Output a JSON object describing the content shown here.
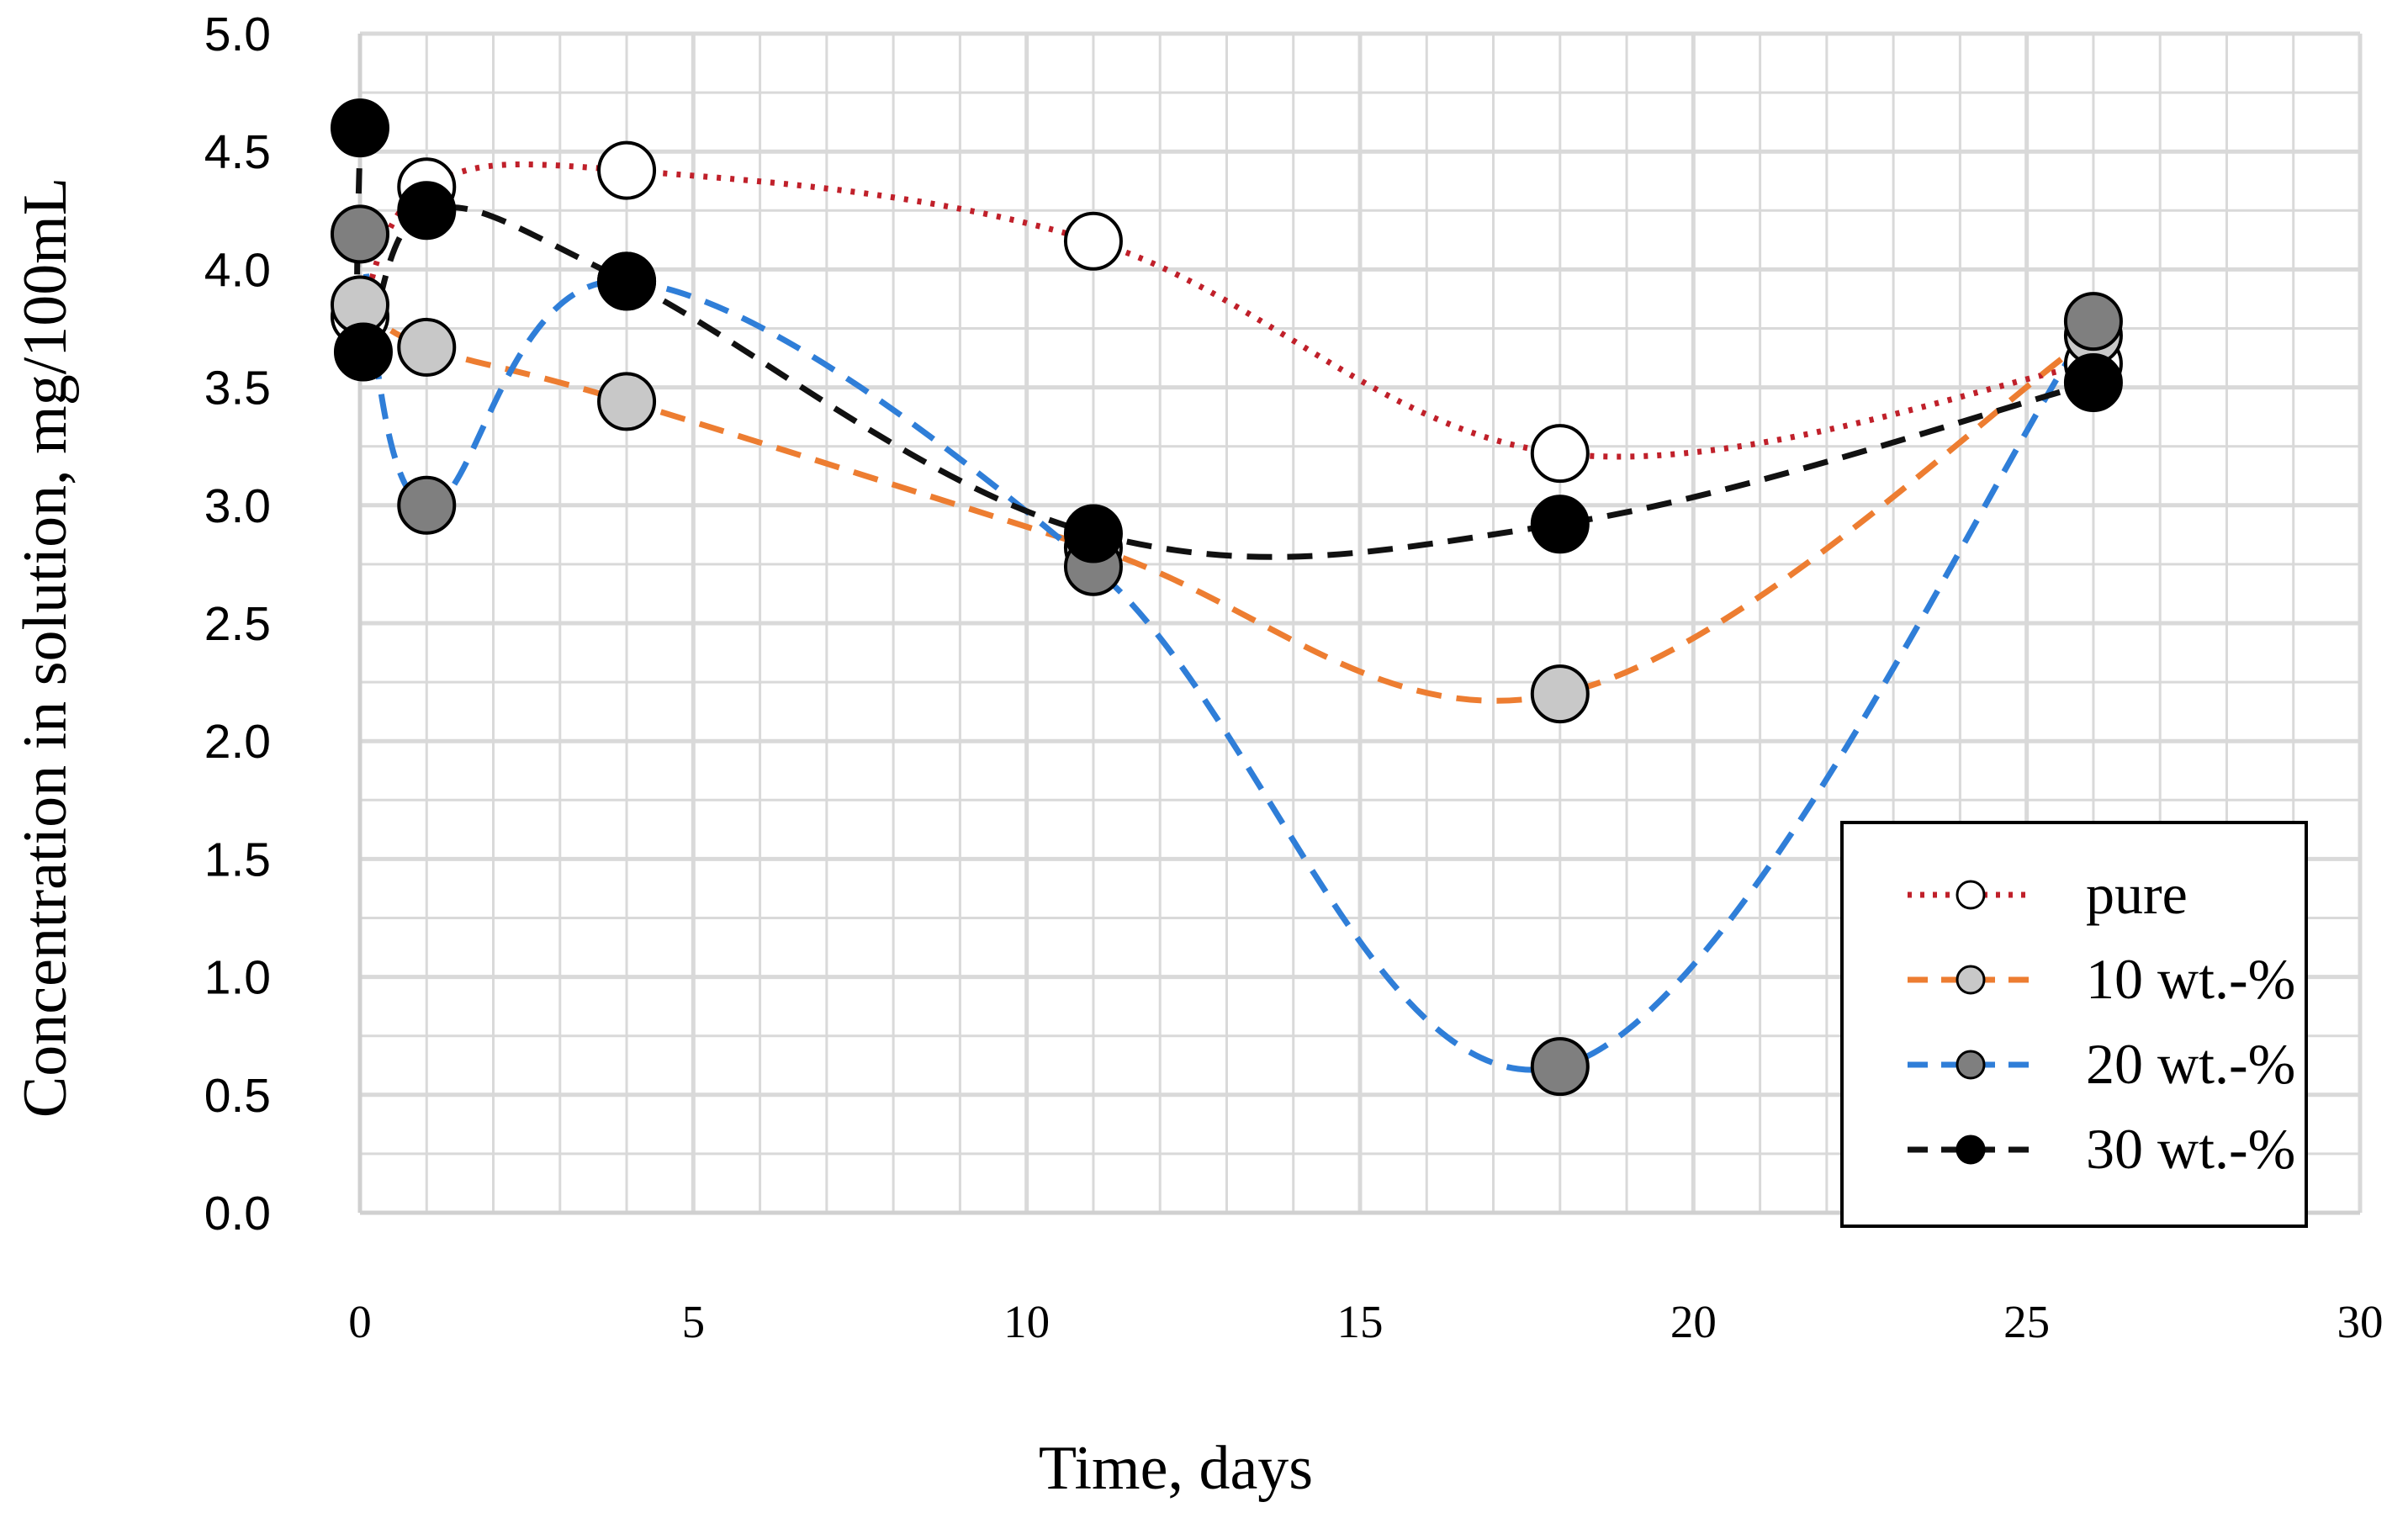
{
  "chart_data": {
    "type": "line",
    "xlabel": "Time, days",
    "ylabel": "Concentration in solution, mg/100mL",
    "xlim": [
      0,
      30
    ],
    "ylim": [
      0,
      5
    ],
    "x_ticks": [
      "0",
      "5",
      "10",
      "15",
      "20",
      "25",
      "30"
    ],
    "y_ticks": [
      "0.0",
      "0.5",
      "1.0",
      "1.5",
      "2.0",
      "2.5",
      "3.0",
      "3.5",
      "4.0",
      "4.5",
      "5.0"
    ],
    "grid": true,
    "legend_position": "bottom-right",
    "series": [
      {
        "name": "pure",
        "line_color": "#c0202a",
        "line_style": "dotted",
        "marker_fill": "#ffffff",
        "x": [
          0,
          1,
          4,
          11,
          18,
          26
        ],
        "y": [
          3.8,
          4.35,
          4.42,
          4.12,
          3.22,
          3.6
        ]
      },
      {
        "name": "10 wt.-%",
        "line_color": "#ed7d31",
        "line_style": "dashed",
        "marker_fill": "#c8c8c8",
        "x": [
          0,
          1,
          4,
          11,
          18,
          26
        ],
        "y": [
          3.85,
          3.67,
          3.44,
          2.82,
          2.2,
          3.72
        ]
      },
      {
        "name": "20 wt.-%",
        "line_color": "#2f7ed8",
        "line_style": "dashed",
        "marker_fill": "#7f7f7f",
        "x": [
          0,
          1,
          4,
          11,
          18,
          26
        ],
        "y": [
          4.15,
          3.0,
          3.95,
          2.74,
          0.62,
          3.78
        ]
      },
      {
        "name": "30 wt.-%",
        "line_color": "#111111",
        "line_style": "dashed",
        "marker_fill": "#000000",
        "x": [
          0,
          0.05,
          1,
          4,
          11,
          18,
          26
        ],
        "y": [
          4.6,
          3.65,
          4.25,
          3.95,
          2.88,
          2.92,
          3.52
        ]
      }
    ]
  }
}
